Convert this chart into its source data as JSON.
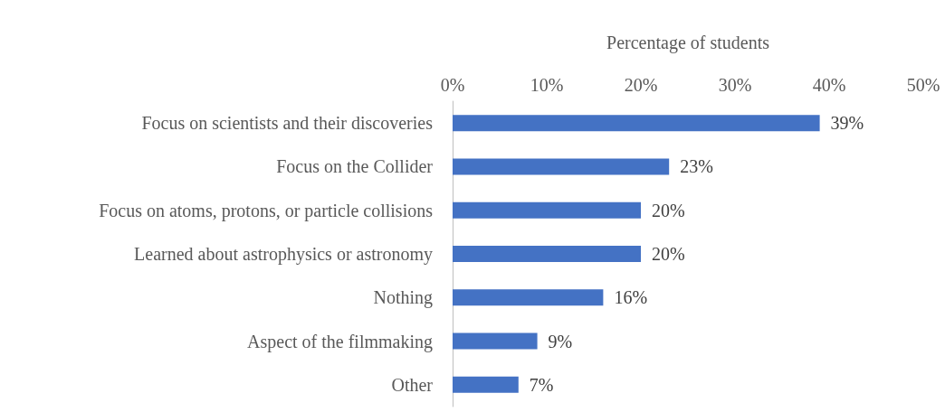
{
  "chart_data": {
    "type": "bar",
    "orientation": "horizontal",
    "xlabel": "Percentage of students",
    "categories": [
      "Focus on scientists and their discoveries",
      "Focus on the Collider",
      "Focus on atoms, protons, or particle collisions",
      "Learned about astrophysics or astronomy",
      "Nothing",
      "Aspect of the filmmaking",
      "Other"
    ],
    "values": [
      39,
      23,
      20,
      20,
      16,
      9,
      7
    ],
    "value_labels": [
      "39%",
      "23%",
      "20%",
      "20%",
      "16%",
      "9%",
      "7%"
    ],
    "color": "#4472c4",
    "xlim": [
      0,
      50
    ],
    "xticks": [
      {
        "value": 0,
        "label": "0%"
      },
      {
        "value": 10,
        "label": "10%"
      },
      {
        "value": 20,
        "label": "20%"
      },
      {
        "value": 30,
        "label": "30%"
      },
      {
        "value": 40,
        "label": "40%"
      },
      {
        "value": 50,
        "label": "50%"
      }
    ],
    "grid": false
  }
}
